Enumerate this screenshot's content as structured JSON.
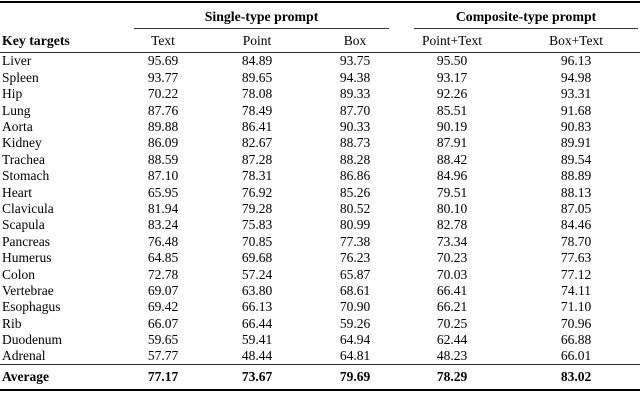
{
  "table": {
    "key_column": "Key targets",
    "groups": [
      {
        "label": "Single-type prompt"
      },
      {
        "label": "Composite-type prompt"
      }
    ],
    "columns": [
      "Text",
      "Point",
      "Box",
      "Point+Text",
      "Box+Text"
    ],
    "rows": [
      {
        "target": "Liver",
        "values": [
          "95.69",
          "84.89",
          "93.75",
          "95.50",
          "96.13"
        ]
      },
      {
        "target": "Spleen",
        "values": [
          "93.77",
          "89.65",
          "94.38",
          "93.17",
          "94.98"
        ]
      },
      {
        "target": "Hip",
        "values": [
          "70.22",
          "78.08",
          "89.33",
          "92.26",
          "93.31"
        ]
      },
      {
        "target": "Lung",
        "values": [
          "87.76",
          "78.49",
          "87.70",
          "85.51",
          "91.68"
        ]
      },
      {
        "target": "Aorta",
        "values": [
          "89.88",
          "86.41",
          "90.33",
          "90.19",
          "90.83"
        ]
      },
      {
        "target": "Kidney",
        "values": [
          "86.09",
          "82.67",
          "88.73",
          "87.91",
          "89.91"
        ]
      },
      {
        "target": "Trachea",
        "values": [
          "88.59",
          "87.28",
          "88.28",
          "88.42",
          "89.54"
        ]
      },
      {
        "target": "Stomach",
        "values": [
          "87.10",
          "78.31",
          "86.86",
          "84.96",
          "88.89"
        ]
      },
      {
        "target": "Heart",
        "values": [
          "65.95",
          "76.92",
          "85.26",
          "79.51",
          "88.13"
        ]
      },
      {
        "target": "Clavicula",
        "values": [
          "81.94",
          "79.28",
          "80.52",
          "80.10",
          "87.05"
        ]
      },
      {
        "target": "Scapula",
        "values": [
          "83.24",
          "75.83",
          "80.99",
          "82.78",
          "84.46"
        ]
      },
      {
        "target": "Pancreas",
        "values": [
          "76.48",
          "70.85",
          "77.38",
          "73.34",
          "78.70"
        ]
      },
      {
        "target": "Humerus",
        "values": [
          "64.85",
          "69.68",
          "76.23",
          "70.23",
          "77.63"
        ]
      },
      {
        "target": "Colon",
        "values": [
          "72.78",
          "57.24",
          "65.87",
          "70.03",
          "77.12"
        ]
      },
      {
        "target": "Vertebrae",
        "values": [
          "69.07",
          "63.80",
          "68.61",
          "66.41",
          "74.11"
        ]
      },
      {
        "target": "Esophagus",
        "values": [
          "69.42",
          "66.13",
          "70.90",
          "66.21",
          "71.10"
        ]
      },
      {
        "target": "Rib",
        "values": [
          "66.07",
          "66.44",
          "59.26",
          "70.25",
          "70.96"
        ]
      },
      {
        "target": "Duodenum",
        "values": [
          "59.65",
          "59.41",
          "64.94",
          "62.44",
          "66.88"
        ]
      },
      {
        "target": "Adrenal",
        "values": [
          "57.77",
          "48.44",
          "64.81",
          "48.23",
          "66.01"
        ]
      }
    ],
    "average": {
      "label": "Average",
      "values": [
        "77.17",
        "73.67",
        "79.69",
        "78.29",
        "83.02"
      ]
    }
  },
  "colors": {
    "text": "#000000",
    "rule_heavy": "#000000",
    "rule_light": "#3a3a3a",
    "background": "#ffffff"
  }
}
